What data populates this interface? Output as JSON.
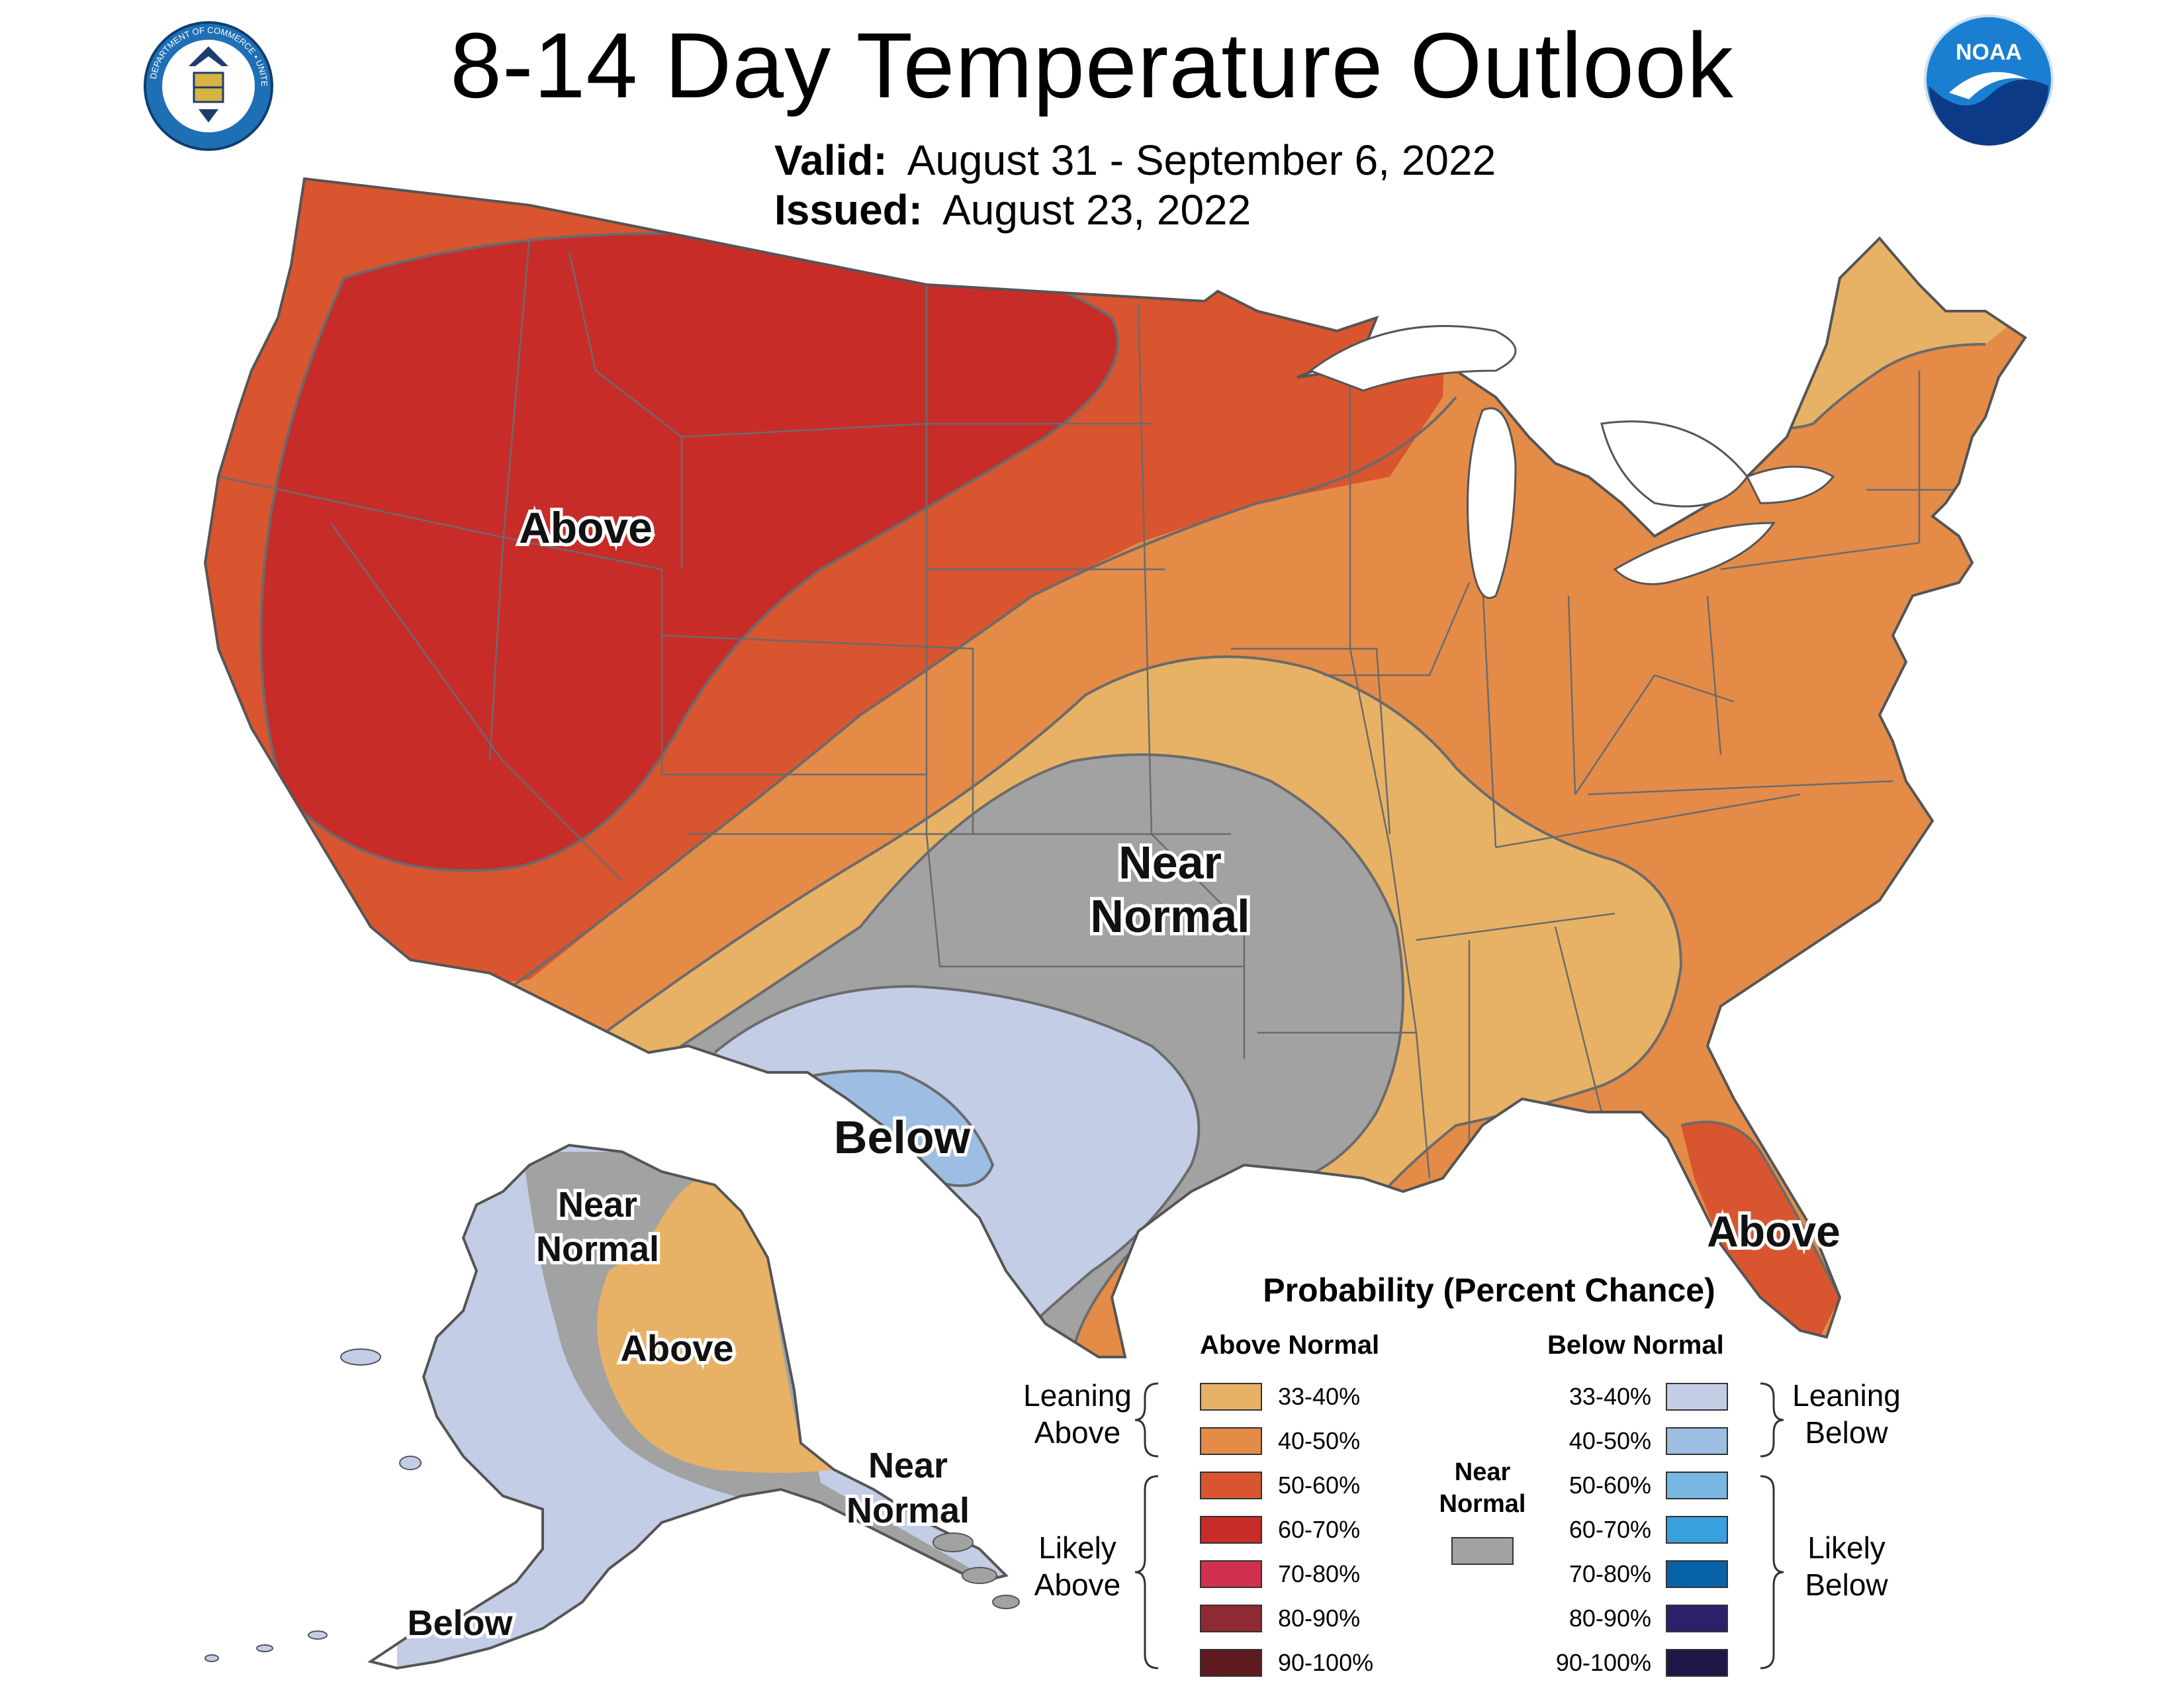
{
  "header": {
    "title": "8-14 Day Temperature Outlook",
    "valid_label": "Valid:",
    "valid_value": "August 31 - September 6, 2022",
    "issued_label": "Issued:",
    "issued_value": "August 23, 2022"
  },
  "logos": {
    "left": {
      "name": "department-of-commerce-seal",
      "text": "DEPARTMENT OF COMMERCE • UNITED STATES OF AMERICA"
    },
    "right": {
      "name": "noaa-logo",
      "text": "NOAA"
    }
  },
  "map_labels": {
    "conus_above_west": "Above",
    "conus_near_normal_1": "Near",
    "conus_near_normal_2": "Normal",
    "conus_below": "Below",
    "florida_above": "Above",
    "ak_near_normal_1": "Near",
    "ak_near_normal_2": "Normal",
    "ak_above": "Above",
    "ak_below": "Below",
    "ak_panhandle_near_1": "Near",
    "ak_panhandle_near_2": "Normal"
  },
  "colors": {
    "above_33_40": "#e8b266",
    "above_40_50": "#e48b48",
    "above_50_60": "#d9552f",
    "above_60_70": "#c72c29",
    "above_70_80": "#d0304e",
    "above_80_90": "#8f2a34",
    "above_90_100": "#5e1c20",
    "near_normal": "#a2a2a2",
    "below_33_40": "#c3cde6",
    "below_40_50": "#9dbde2",
    "below_50_60": "#79b7e3",
    "below_60_70": "#39a0de",
    "below_70_80": "#0862a8",
    "below_80_90": "#2e1f6a",
    "below_90_100": "#1d1848",
    "water": "#ffffff",
    "border": "#6b6b6b"
  },
  "legend": {
    "title": "Probability (Percent Chance)",
    "above_header": "Above Normal",
    "below_header": "Below Normal",
    "near_header_1": "Near",
    "near_header_2": "Normal",
    "leaning_above_1": "Leaning",
    "leaning_above_2": "Above",
    "likely_above_1": "Likely",
    "likely_above_2": "Above",
    "leaning_below_1": "Leaning",
    "leaning_below_2": "Below",
    "likely_below_1": "Likely",
    "likely_below_2": "Below",
    "above_items": [
      {
        "label": "33-40%",
        "color": "#e8b266"
      },
      {
        "label": "40-50%",
        "color": "#e48b48"
      },
      {
        "label": "50-60%",
        "color": "#d9552f"
      },
      {
        "label": "60-70%",
        "color": "#c72c29"
      },
      {
        "label": "70-80%",
        "color": "#d0304e"
      },
      {
        "label": "80-90%",
        "color": "#8f2a34"
      },
      {
        "label": "90-100%",
        "color": "#5e1c20"
      }
    ],
    "below_items": [
      {
        "label": "33-40%",
        "color": "#c3cde6"
      },
      {
        "label": "40-50%",
        "color": "#9dbde2"
      },
      {
        "label": "50-60%",
        "color": "#79b7e3"
      },
      {
        "label": "60-70%",
        "color": "#39a0de"
      },
      {
        "label": "70-80%",
        "color": "#0862a8"
      },
      {
        "label": "80-90%",
        "color": "#2e1f6a"
      },
      {
        "label": "90-100%",
        "color": "#1d1848"
      }
    ]
  }
}
